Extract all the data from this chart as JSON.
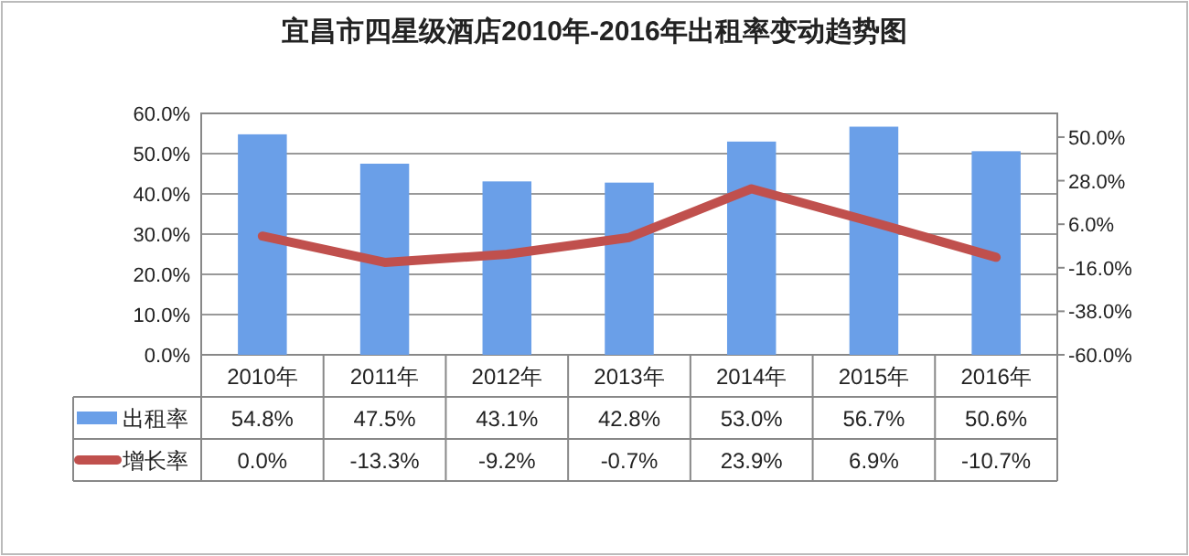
{
  "chart_data": {
    "type": "bar",
    "title": "宜昌市四星级酒店2010年-2016年出租率变动趋势图",
    "categories": [
      "2010年",
      "2011年",
      "2012年",
      "2013年",
      "2014年",
      "2015年",
      "2016年"
    ],
    "series": [
      {
        "name": "出租率",
        "color": "#6a9fe8",
        "values": [
          54.8,
          47.5,
          43.1,
          42.8,
          53.0,
          56.7,
          50.6
        ],
        "value_labels": [
          "54.8%",
          "47.5%",
          "43.1%",
          "42.8%",
          "53.0%",
          "56.7%",
          "50.6%"
        ]
      },
      {
        "name": "增长率",
        "type": "line",
        "axis": "y2",
        "color": "#c0504d",
        "values": [
          0.0,
          -13.3,
          -9.2,
          -0.7,
          23.9,
          6.9,
          -10.7
        ],
        "value_labels": [
          "0.0%",
          "-13.3%",
          "-9.2%",
          "-0.7%",
          "23.9%",
          "6.9%",
          "-10.7%"
        ]
      }
    ],
    "ylim": [
      0,
      60
    ],
    "yticks": [
      {
        "value": 0,
        "label": "0.0%"
      },
      {
        "value": 10,
        "label": "10.0%"
      },
      {
        "value": 20,
        "label": "20.0%"
      },
      {
        "value": 30,
        "label": "30.0%"
      },
      {
        "value": 40,
        "label": "40.0%"
      },
      {
        "value": 50,
        "label": "50.0%"
      },
      {
        "value": 60,
        "label": "60.0%"
      }
    ],
    "y2lim": [
      -60,
      62
    ],
    "y2ticks": [
      {
        "value": -60,
        "label": "-60.0%"
      },
      {
        "value": -38,
        "label": "-38.0%"
      },
      {
        "value": -16,
        "label": "-16.0%"
      },
      {
        "value": 6,
        "label": "6.0%"
      },
      {
        "value": 28,
        "label": "28.0%"
      },
      {
        "value": 50,
        "label": "50.0%"
      }
    ],
    "grid": "y",
    "legend": "bottom left"
  }
}
